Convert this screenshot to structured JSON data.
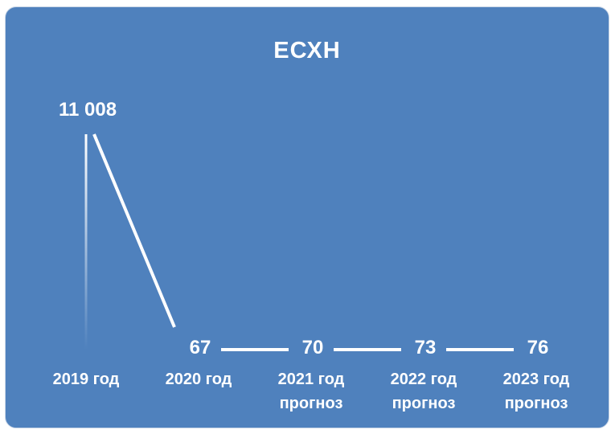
{
  "chart_data": {
    "type": "line",
    "title": "ЕСХН",
    "categories": [
      "2019 год",
      "2020 год",
      "2021 год прогноз",
      "2022 год прогноз",
      "2023 год прогноз"
    ],
    "category_lines": [
      [
        "2019 год"
      ],
      [
        "2020 год"
      ],
      [
        "2021 год",
        "прогноз"
      ],
      [
        "2022 год",
        "прогноз"
      ],
      [
        "2023 год",
        "прогноз"
      ]
    ],
    "values": [
      11008,
      67,
      70,
      73,
      76
    ],
    "value_labels": [
      "11 008",
      "67",
      "70",
      "73",
      "76"
    ],
    "legend": "none",
    "grid": false,
    "colors": {
      "background": "#4f81bd",
      "line": "#ffffff",
      "text": "#ffffff"
    }
  }
}
